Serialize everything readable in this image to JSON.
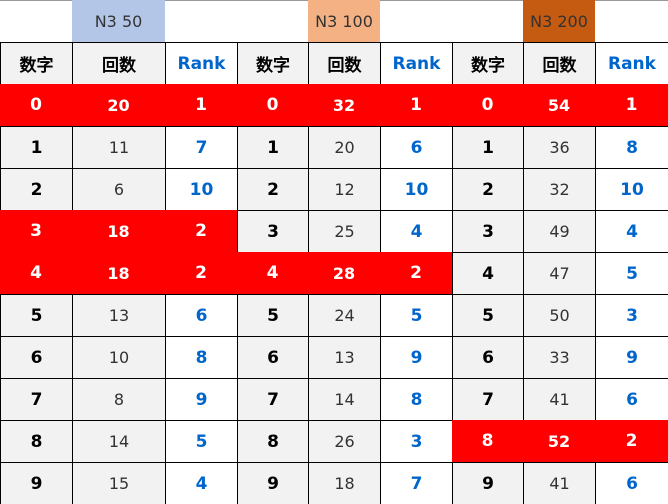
{
  "column_headers": {
    "number": "数字",
    "count": "回数",
    "rank": "Rank"
  },
  "colors": {
    "highlight": "#ff0000",
    "rank_text": "#0066cc",
    "cell_gray": "#f2f2f2"
  },
  "groups": [
    {
      "title": "N3 50",
      "title_color": "#b4c6e7",
      "rows": [
        [
          "0",
          "20",
          "1"
        ],
        [
          "1",
          "11",
          "7"
        ],
        [
          "2",
          "6",
          "10"
        ],
        [
          "3",
          "18",
          "2"
        ],
        [
          "4",
          "18",
          "2"
        ],
        [
          "5",
          "13",
          "6"
        ],
        [
          "6",
          "10",
          "8"
        ],
        [
          "7",
          "8",
          "9"
        ],
        [
          "8",
          "14",
          "5"
        ],
        [
          "9",
          "15",
          "4"
        ]
      ],
      "highlighted_rows": [
        0,
        3,
        4
      ]
    },
    {
      "title": "N3 100",
      "title_color": "#f4b183",
      "rows": [
        [
          "0",
          "32",
          "1"
        ],
        [
          "1",
          "20",
          "6"
        ],
        [
          "2",
          "12",
          "10"
        ],
        [
          "3",
          "25",
          "4"
        ],
        [
          "4",
          "28",
          "2"
        ],
        [
          "5",
          "24",
          "5"
        ],
        [
          "6",
          "13",
          "9"
        ],
        [
          "7",
          "14",
          "8"
        ],
        [
          "8",
          "26",
          "3"
        ],
        [
          "9",
          "18",
          "7"
        ]
      ],
      "highlighted_rows": [
        0,
        4
      ]
    },
    {
      "title": "N3 200",
      "title_color": "#c55a11",
      "rows": [
        [
          "0",
          "54",
          "1"
        ],
        [
          "1",
          "36",
          "8"
        ],
        [
          "2",
          "32",
          "10"
        ],
        [
          "3",
          "49",
          "4"
        ],
        [
          "4",
          "47",
          "5"
        ],
        [
          "5",
          "50",
          "3"
        ],
        [
          "6",
          "33",
          "9"
        ],
        [
          "7",
          "41",
          "6"
        ],
        [
          "8",
          "52",
          "2"
        ],
        [
          "9",
          "41",
          "6"
        ]
      ],
      "highlighted_rows": [
        0,
        8
      ]
    }
  ]
}
